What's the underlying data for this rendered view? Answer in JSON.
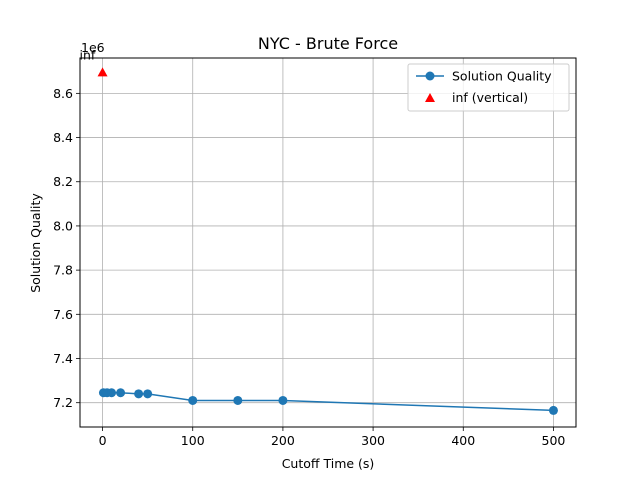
{
  "chart_data": {
    "type": "line",
    "title": "NYC - Brute Force",
    "xlabel": "Cutoff Time (s)",
    "ylabel": "Solution Quality",
    "y_offset_label": "1e6",
    "xlim": [
      -25,
      525
    ],
    "ylim": [
      7.09,
      8.76
    ],
    "y_scale_factor": 1000000,
    "xticks": [
      0,
      100,
      200,
      300,
      400,
      500
    ],
    "yticks": [
      7.2,
      7.4,
      7.6,
      7.8,
      8.0,
      8.2,
      8.4,
      8.6
    ],
    "ytick_labels": [
      "7.2",
      "7.4",
      "7.6",
      "7.8",
      "8.0",
      "8.2",
      "8.4",
      "8.6"
    ],
    "grid": true,
    "legend_position": "top-right",
    "series": [
      {
        "name": "Solution Quality",
        "color": "#1f77b4",
        "marker": "circle",
        "x": [
          1,
          5,
          10,
          20,
          40,
          50,
          100,
          150,
          200,
          500
        ],
        "y": [
          7.245,
          7.245,
          7.245,
          7.245,
          7.24,
          7.24,
          7.21,
          7.21,
          7.21,
          7.165
        ]
      },
      {
        "name": "inf (vertical)",
        "color": "#ff0000",
        "marker": "triangle",
        "line": false,
        "x": [
          0
        ],
        "y": [
          8.695
        ]
      }
    ],
    "annotations": [
      {
        "text": "inf",
        "x": 0,
        "y": 8.695
      }
    ]
  }
}
